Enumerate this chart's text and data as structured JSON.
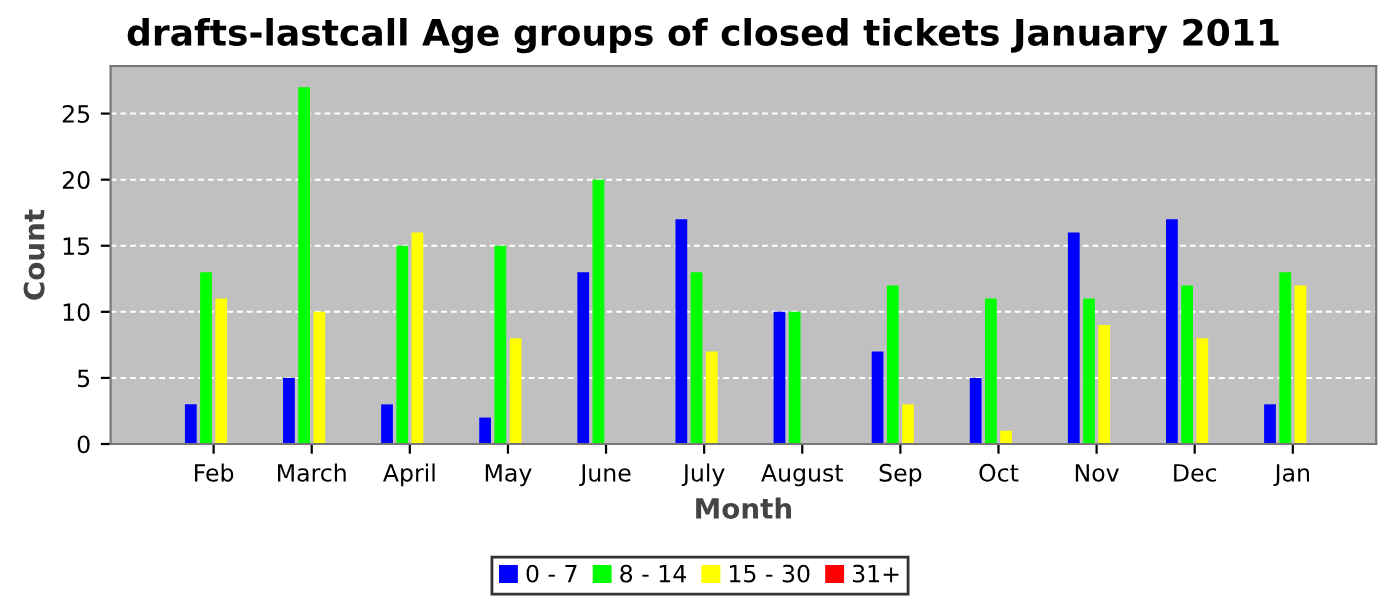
{
  "chart_data": {
    "type": "bar",
    "title": "drafts-lastcall Age groups of closed tickets January 2011",
    "xlabel": "Month",
    "ylabel": "Count",
    "categories": [
      "Feb",
      "March",
      "April",
      "May",
      "June",
      "July",
      "August",
      "Sep",
      "Oct",
      "Nov",
      "Dec",
      "Jan"
    ],
    "series": [
      {
        "name": "0 - 7",
        "color": "#0000ff",
        "values": [
          3,
          5,
          3,
          2,
          13,
          17,
          10,
          7,
          5,
          16,
          17,
          3
        ]
      },
      {
        "name": "8 - 14",
        "color": "#00ff00",
        "values": [
          13,
          27,
          15,
          15,
          20,
          13,
          10,
          12,
          11,
          11,
          12,
          13
        ]
      },
      {
        "name": "15 - 30",
        "color": "#ffff00",
        "values": [
          11,
          10,
          16,
          8,
          0,
          7,
          0,
          3,
          1,
          9,
          8,
          12
        ]
      },
      {
        "name": "31+",
        "color": "#ff0000",
        "values": [
          0,
          0,
          0,
          0,
          0,
          0,
          0,
          0,
          0,
          0,
          0,
          0
        ]
      }
    ],
    "ylim": [
      0,
      28.6
    ],
    "yticks": [
      0,
      5,
      10,
      15,
      20,
      25
    ],
    "grid": "y",
    "legend": "bottom"
  }
}
